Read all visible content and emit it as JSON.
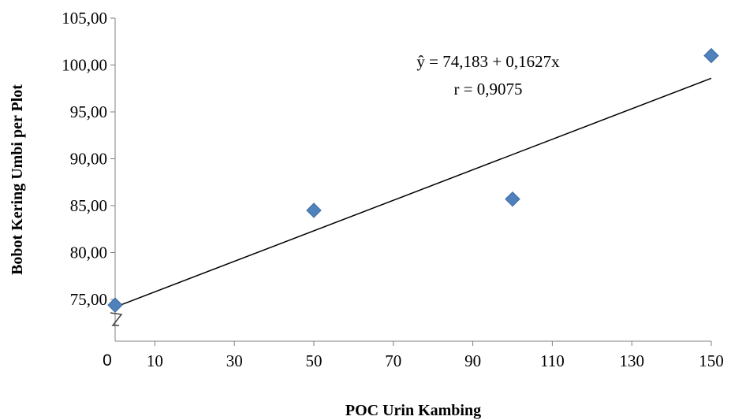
{
  "chart_data": {
    "type": "scatter",
    "title": "",
    "xlabel": "POC Urin Kambing",
    "ylabel": "Bobot Kering Umbi per Plot",
    "xlim": [
      0,
      150
    ],
    "ylim": [
      75,
      105
    ],
    "x_ticks": [
      10,
      30,
      50,
      70,
      90,
      110,
      130,
      150
    ],
    "x_tick_labels": [
      "10",
      "30",
      "50",
      "70",
      "90",
      "110",
      "130",
      "150"
    ],
    "x_origin_label": "0",
    "y_ticks": [
      75,
      80,
      85,
      90,
      95,
      100,
      105
    ],
    "y_tick_labels": [
      "75,00",
      "80,00",
      "85,00",
      "90,00",
      "95,00",
      "100,00",
      "105,00"
    ],
    "axis_break": "y-axis",
    "grid": false,
    "legend": "none",
    "series": [
      {
        "marker": "diamond",
        "color": "#4f81bd",
        "x": [
          0,
          50,
          100,
          150
        ],
        "y": [
          74.4,
          84.5,
          85.7,
          101.0
        ]
      }
    ],
    "trendline": {
      "type": "linear",
      "intercept": 74.183,
      "slope": 0.1627,
      "x_range": [
        0,
        150
      ],
      "color": "#000000"
    },
    "annotations": {
      "equation": "ŷ = 74,183 + 0,1627x",
      "r_value": "r = 0,9075"
    }
  }
}
